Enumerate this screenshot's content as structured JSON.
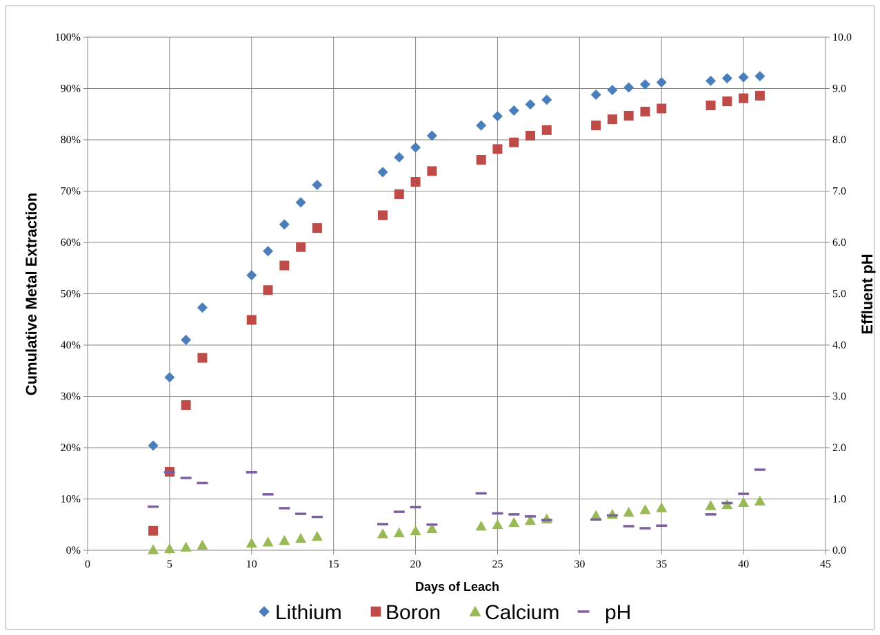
{
  "chart_data": {
    "type": "scatter",
    "title": "",
    "xlabel": "Days of Leach",
    "ylabel": "Cumulative Metal Extraction",
    "y2label": "Effluent pH",
    "xlim": [
      0,
      45
    ],
    "ylim": [
      0,
      100
    ],
    "y2lim": [
      0,
      10
    ],
    "x_ticks": [
      "0",
      "5",
      "10",
      "15",
      "20",
      "25",
      "30",
      "35",
      "40",
      "45"
    ],
    "y_ticks": [
      "0%",
      "10%",
      "20%",
      "30%",
      "40%",
      "50%",
      "60%",
      "70%",
      "80%",
      "90%",
      "100%"
    ],
    "y2_ticks": [
      "0.0",
      "1.0",
      "2.0",
      "3.0",
      "4.0",
      "5.0",
      "6.0",
      "7.0",
      "8.0",
      "9.0",
      "10.0"
    ],
    "grid": true,
    "legend_position": "bottom",
    "series": [
      {
        "name": "Lithium",
        "marker": "diamond",
        "color": "#4a7ebb",
        "axis": "left",
        "points": [
          [
            4,
            20.4
          ],
          [
            5,
            33.7
          ],
          [
            6,
            41.0
          ],
          [
            7,
            47.3
          ],
          [
            10,
            53.6
          ],
          [
            11,
            58.3
          ],
          [
            12,
            63.5
          ],
          [
            13,
            67.8
          ],
          [
            14,
            71.2
          ],
          [
            18,
            73.7
          ],
          [
            19,
            76.6
          ],
          [
            20,
            78.5
          ],
          [
            21,
            80.8
          ],
          [
            24,
            82.8
          ],
          [
            25,
            84.6
          ],
          [
            26,
            85.7
          ],
          [
            27,
            86.9
          ],
          [
            28,
            87.8
          ],
          [
            31,
            88.8
          ],
          [
            32,
            89.7
          ],
          [
            33,
            90.2
          ],
          [
            34,
            90.8
          ],
          [
            35,
            91.2
          ],
          [
            38,
            91.5
          ],
          [
            39,
            92.0
          ],
          [
            40,
            92.2
          ],
          [
            41,
            92.4
          ]
        ]
      },
      {
        "name": "Boron",
        "marker": "square",
        "color": "#be4b48",
        "axis": "left",
        "points": [
          [
            4,
            3.8
          ],
          [
            5,
            15.3
          ],
          [
            6,
            28.3
          ],
          [
            7,
            37.5
          ],
          [
            10,
            44.9
          ],
          [
            11,
            50.7
          ],
          [
            12,
            55.5
          ],
          [
            13,
            59.1
          ],
          [
            14,
            62.8
          ],
          [
            18,
            65.3
          ],
          [
            19,
            69.4
          ],
          [
            20,
            71.8
          ],
          [
            21,
            73.9
          ],
          [
            24,
            76.1
          ],
          [
            25,
            78.2
          ],
          [
            26,
            79.5
          ],
          [
            27,
            80.8
          ],
          [
            28,
            81.9
          ],
          [
            31,
            82.8
          ],
          [
            32,
            84.0
          ],
          [
            33,
            84.7
          ],
          [
            34,
            85.5
          ],
          [
            35,
            86.1
          ],
          [
            38,
            86.7
          ],
          [
            39,
            87.5
          ],
          [
            40,
            88.1
          ],
          [
            41,
            88.6
          ]
        ]
      },
      {
        "name": "Calcium",
        "marker": "triangle",
        "color": "#98b954",
        "axis": "left",
        "points": [
          [
            4,
            0.1
          ],
          [
            5,
            0.3
          ],
          [
            6,
            0.6
          ],
          [
            7,
            1.0
          ],
          [
            10,
            1.4
          ],
          [
            11,
            1.6
          ],
          [
            12,
            1.9
          ],
          [
            13,
            2.3
          ],
          [
            14,
            2.7
          ],
          [
            18,
            3.2
          ],
          [
            19,
            3.4
          ],
          [
            20,
            3.8
          ],
          [
            21,
            4.2
          ],
          [
            24,
            4.7
          ],
          [
            25,
            5.0
          ],
          [
            26,
            5.4
          ],
          [
            27,
            5.8
          ],
          [
            28,
            6.1
          ],
          [
            31,
            6.8
          ],
          [
            32,
            7.0
          ],
          [
            33,
            7.4
          ],
          [
            34,
            7.9
          ],
          [
            35,
            8.3
          ],
          [
            38,
            8.7
          ],
          [
            39,
            8.9
          ],
          [
            40,
            9.3
          ],
          [
            41,
            9.6
          ]
        ]
      },
      {
        "name": "pH",
        "marker": "dash",
        "color": "#7d5fa0",
        "axis": "right",
        "points": [
          [
            4,
            0.85
          ],
          [
            5,
            1.52
          ],
          [
            6,
            1.41
          ],
          [
            7,
            1.31
          ],
          [
            10,
            1.52
          ],
          [
            11,
            1.09
          ],
          [
            12,
            0.82
          ],
          [
            13,
            0.71
          ],
          [
            14,
            0.65
          ],
          [
            18,
            0.51
          ],
          [
            19,
            0.75
          ],
          [
            20,
            0.84
          ],
          [
            21,
            0.5
          ],
          [
            24,
            1.11
          ],
          [
            25,
            0.72
          ],
          [
            26,
            0.7
          ],
          [
            27,
            0.66
          ],
          [
            28,
            0.59
          ],
          [
            31,
            0.6
          ],
          [
            32,
            0.68
          ],
          [
            33,
            0.47
          ],
          [
            34,
            0.43
          ],
          [
            35,
            0.48
          ],
          [
            38,
            0.7
          ],
          [
            39,
            0.92
          ],
          [
            40,
            1.1
          ],
          [
            41,
            1.57
          ]
        ]
      }
    ]
  }
}
